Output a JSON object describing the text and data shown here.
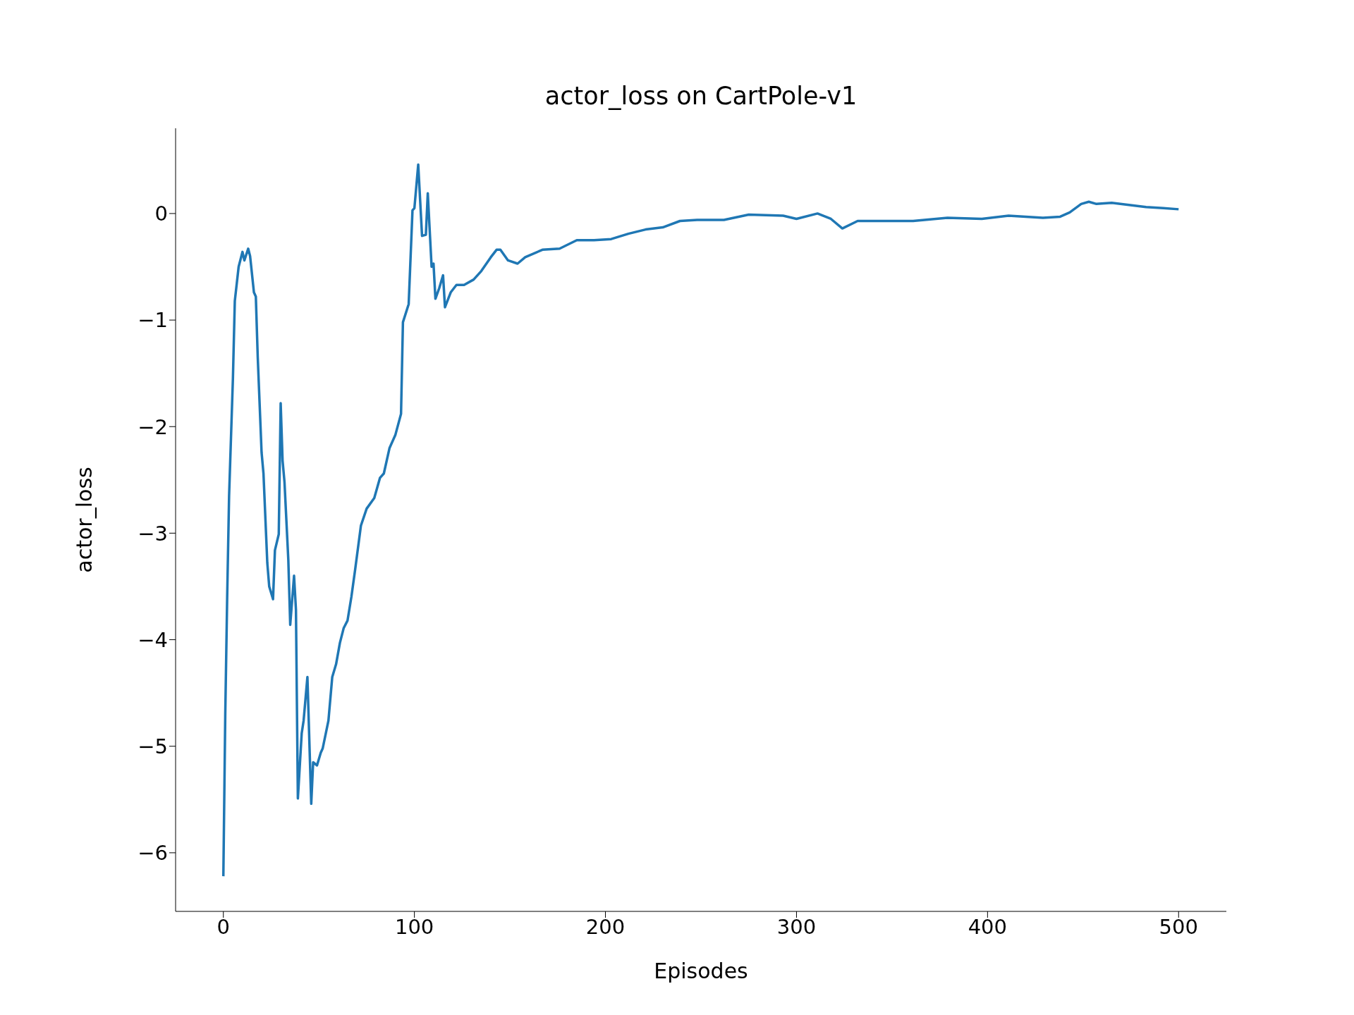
{
  "chart_data": {
    "type": "line",
    "title": "actor_loss on CartPole-v1",
    "xlabel": "Episodes",
    "ylabel": "actor_loss",
    "color": "#1f77b4",
    "x": [
      0,
      1,
      2,
      3,
      5,
      6,
      8,
      10,
      11,
      13,
      14,
      16,
      17,
      18,
      20,
      21,
      23,
      24,
      26,
      27,
      29,
      30,
      31,
      32,
      34,
      35,
      37,
      38,
      39,
      41,
      42,
      44,
      46,
      47,
      49,
      51,
      52,
      55,
      57,
      59,
      61,
      63,
      65,
      67,
      69,
      72,
      75,
      79,
      82,
      84,
      87,
      90,
      93,
      94,
      97,
      99,
      100,
      102,
      104,
      106,
      107,
      109,
      110,
      111,
      113,
      115,
      116,
      119,
      122,
      126,
      131,
      135,
      140,
      143,
      145,
      149,
      154,
      158,
      167,
      176,
      185,
      194,
      203,
      212,
      221,
      230,
      239,
      248,
      262,
      275,
      293,
      300,
      311,
      318,
      324,
      332,
      343,
      361,
      379,
      397,
      411,
      429,
      438,
      443,
      449,
      453,
      457,
      465,
      474,
      483,
      492,
      500
    ],
    "values": [
      -6.22,
      -4.7,
      -3.6,
      -2.65,
      -1.55,
      -0.82,
      -0.5,
      -0.36,
      -0.44,
      -0.33,
      -0.4,
      -0.74,
      -0.78,
      -1.35,
      -2.24,
      -2.44,
      -3.28,
      -3.5,
      -3.62,
      -3.16,
      -3.01,
      -1.78,
      -2.32,
      -2.52,
      -3.25,
      -3.86,
      -3.4,
      -3.72,
      -5.49,
      -4.88,
      -4.76,
      -4.35,
      -5.54,
      -5.15,
      -5.18,
      -5.06,
      -5.02,
      -4.76,
      -4.35,
      -4.23,
      -4.03,
      -3.89,
      -3.82,
      -3.6,
      -3.34,
      -2.93,
      -2.77,
      -2.67,
      -2.48,
      -2.44,
      -2.2,
      -2.08,
      -1.88,
      -1.02,
      -0.85,
      0.03,
      0.05,
      0.46,
      -0.21,
      -0.2,
      0.19,
      -0.5,
      -0.47,
      -0.8,
      -0.7,
      -0.58,
      -0.88,
      -0.74,
      -0.67,
      -0.67,
      -0.62,
      -0.54,
      -0.41,
      -0.34,
      -0.34,
      -0.44,
      -0.47,
      -0.41,
      -0.34,
      -0.33,
      -0.25,
      -0.25,
      -0.24,
      -0.19,
      -0.15,
      -0.13,
      -0.07,
      -0.06,
      -0.06,
      -0.01,
      -0.02,
      -0.05,
      0,
      -0.05,
      -0.14,
      -0.07,
      -0.07,
      -0.07,
      -0.04,
      -0.05,
      -0.02,
      -0.04,
      -0.03,
      0.01,
      0.09,
      0.11,
      0.09,
      0.1,
      0.08,
      0.06,
      0.05,
      0.04
    ],
    "xlim": [
      -25,
      525
    ],
    "ylim": [
      -6.55,
      0.8
    ],
    "xticks": [
      0,
      100,
      200,
      300,
      400,
      500
    ],
    "yticks": [
      -6,
      -5,
      -4,
      -3,
      -2,
      -1,
      0
    ]
  }
}
